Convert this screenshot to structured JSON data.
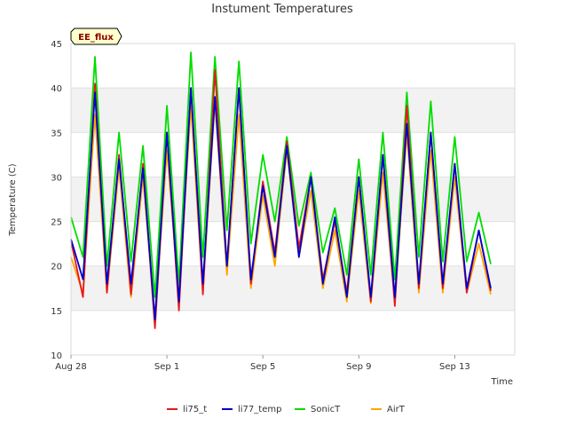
{
  "chart_data": {
    "type": "line",
    "title": "Instument Temperatures",
    "xlabel": "Time",
    "ylabel": "Temperature (C)",
    "badge": "EE_flux",
    "ylim": [
      10,
      45
    ],
    "y_ticks": [
      10,
      15,
      20,
      25,
      30,
      35,
      40,
      45
    ],
    "xlim": [
      "2023-08-28",
      "2023-09-15T12:00"
    ],
    "x_ticks": [
      {
        "date": "2023-08-28",
        "label": "Aug 28"
      },
      {
        "date": "2023-09-01",
        "label": "Sep 1"
      },
      {
        "date": "2023-09-05",
        "label": "Sep 5"
      },
      {
        "date": "2023-09-09",
        "label": "Sep 9"
      },
      {
        "date": "2023-09-13",
        "label": "Sep 13"
      }
    ],
    "grid": "horizontal bands",
    "legend_position": "bottom",
    "x_dates": [
      "2023-08-28T00:00",
      "2023-08-28T12:00",
      "2023-08-29T00:00",
      "2023-08-29T12:00",
      "2023-08-30T00:00",
      "2023-08-30T12:00",
      "2023-08-31T00:00",
      "2023-08-31T12:00",
      "2023-09-01T00:00",
      "2023-09-01T12:00",
      "2023-09-02T00:00",
      "2023-09-02T12:00",
      "2023-09-03T00:00",
      "2023-09-03T12:00",
      "2023-09-04T00:00",
      "2023-09-04T12:00",
      "2023-09-05T00:00",
      "2023-09-05T12:00",
      "2023-09-06T00:00",
      "2023-09-06T12:00",
      "2023-09-07T00:00",
      "2023-09-07T12:00",
      "2023-09-08T00:00",
      "2023-09-08T12:00",
      "2023-09-09T00:00",
      "2023-09-09T12:00",
      "2023-09-10T00:00",
      "2023-09-10T12:00",
      "2023-09-11T00:00",
      "2023-09-11T12:00",
      "2023-09-12T00:00",
      "2023-09-12T12:00",
      "2023-09-13T00:00",
      "2023-09-13T12:00",
      "2023-09-14T00:00",
      "2023-09-14T12:00",
      "2023-09-15T00:00",
      "2023-09-15T12:00"
    ],
    "series": [
      {
        "name": "li75_t",
        "color": "#e41a1c",
        "values": [
          22.8,
          16.5,
          40.5,
          17.0,
          32.5,
          16.8,
          31.5,
          13.0,
          35.0,
          15.0,
          40.0,
          16.8,
          42.0,
          20.0,
          40.0,
          18.0,
          29.5,
          21.5,
          34.0,
          22.0,
          30.0,
          18.5,
          25.0,
          17.0,
          30.0,
          16.0,
          32.5,
          15.5,
          38.0,
          17.5,
          35.0,
          17.5,
          31.5,
          17.0,
          24.0,
          17.2,
          null,
          null
        ]
      },
      {
        "name": "li77_temp",
        "color": "#0000cc",
        "values": [
          23.0,
          18.5,
          39.5,
          18.0,
          32.0,
          18.0,
          31.0,
          14.0,
          35.0,
          16.0,
          40.0,
          18.0,
          39.0,
          20.0,
          40.0,
          18.5,
          29.0,
          21.0,
          33.5,
          21.0,
          30.0,
          18.0,
          25.5,
          16.5,
          30.0,
          16.5,
          32.5,
          16.5,
          36.0,
          18.0,
          35.0,
          18.0,
          31.5,
          17.5,
          24.0,
          17.5,
          null,
          null
        ]
      },
      {
        "name": "SonicT",
        "color": "#00dd00",
        "values": [
          25.5,
          21.0,
          43.5,
          20.0,
          35.0,
          20.5,
          33.5,
          16.5,
          38.0,
          18.0,
          44.0,
          21.0,
          43.5,
          24.0,
          43.0,
          22.5,
          32.5,
          25.0,
          34.5,
          24.5,
          30.5,
          21.5,
          26.5,
          19.0,
          32.0,
          19.0,
          35.0,
          18.5,
          39.5,
          21.0,
          38.5,
          20.5,
          34.5,
          20.5,
          26.0,
          20.2,
          null,
          null
        ]
      },
      {
        "name": "AirT",
        "color": "#ffa500",
        "values": [
          21.0,
          17.0,
          37.0,
          17.0,
          31.0,
          16.5,
          30.0,
          14.0,
          33.0,
          16.5,
          38.0,
          17.0,
          38.5,
          19.0,
          37.0,
          17.5,
          28.0,
          20.0,
          33.0,
          21.0,
          28.5,
          17.5,
          24.0,
          16.0,
          28.5,
          15.8,
          30.5,
          16.0,
          35.0,
          17.0,
          33.0,
          17.0,
          30.0,
          17.0,
          22.5,
          16.8,
          null,
          null
        ]
      }
    ]
  }
}
